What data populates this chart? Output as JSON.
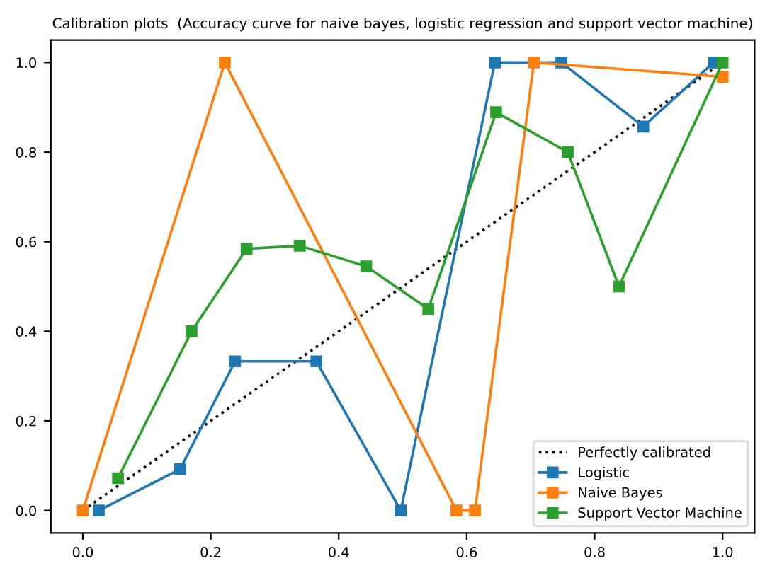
{
  "chart_data": {
    "type": "line",
    "title": "Calibration plots  (Accuracy curve for naive bayes, logistic regression and support vector machine)",
    "xlim": [
      -0.05,
      1.05
    ],
    "ylim": [
      -0.05,
      1.05
    ],
    "xticks": [
      {
        "value": 0,
        "label": "0.0"
      },
      {
        "value": 0.2,
        "label": "0.2"
      },
      {
        "value": 0.4,
        "label": "0.4"
      },
      {
        "value": 0.6,
        "label": "0.6"
      },
      {
        "value": 0.8,
        "label": "0.8"
      },
      {
        "value": 1,
        "label": "1.0"
      }
    ],
    "yticks": [
      {
        "value": 0,
        "label": "0.0"
      },
      {
        "value": 0.2,
        "label": "0.2"
      },
      {
        "value": 0.4,
        "label": "0.4"
      },
      {
        "value": 0.6,
        "label": "0.6"
      },
      {
        "value": 0.8,
        "label": "0.8"
      },
      {
        "value": 1,
        "label": "1.0"
      }
    ],
    "legend": "lower right",
    "grid": false,
    "marker": "square",
    "series": [
      {
        "name": "Perfectly calibrated",
        "color": "#000000",
        "line_style": "dotted",
        "marker": "none",
        "x": [
          0,
          1
        ],
        "values": [
          0,
          1
        ]
      },
      {
        "name": "Logistic",
        "color": "#1f77b4",
        "x": [
          0.025,
          0.152,
          0.238,
          0.365,
          0.497,
          0.644,
          0.748,
          0.876,
          0.986
        ],
        "values": [
          0,
          0.092,
          0.333,
          0.333,
          0,
          1,
          1,
          0.857,
          1
        ]
      },
      {
        "name": "Naive Bayes",
        "color": "#ff7f0e",
        "x": [
          0,
          0.222,
          0.584,
          0.613,
          0.705,
          1.0
        ],
        "values": [
          0,
          1,
          0,
          0,
          1,
          0.968
        ]
      },
      {
        "name": "Support Vector Machine",
        "color": "#2ca02c",
        "x": [
          0.055,
          0.17,
          0.256,
          0.339,
          0.443,
          0.54,
          0.646,
          0.758,
          0.838,
          1.0
        ],
        "values": [
          0.072,
          0.4,
          0.584,
          0.591,
          0.545,
          0.45,
          0.889,
          0.8,
          0.5,
          1
        ]
      }
    ]
  }
}
